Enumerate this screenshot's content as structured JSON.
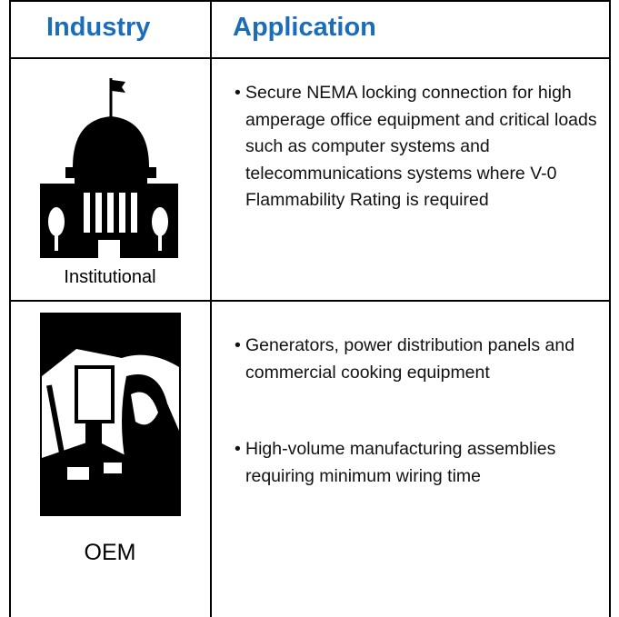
{
  "header": {
    "industry": "Industry",
    "application": "Application"
  },
  "rows": [
    {
      "industry": "Institutional",
      "applications": [
        "Secure NEMA locking connection for high amperage office equipment and critical loads such as computer systems and telecommunications systems where V-0 Flammability Rating is required"
      ]
    },
    {
      "industry": "OEM",
      "applications": [
        "Generators, power distribution panels and commercial cooking equipment",
        "High-volume manufacturing assemblies requiring minimum wiring time"
      ]
    }
  ]
}
